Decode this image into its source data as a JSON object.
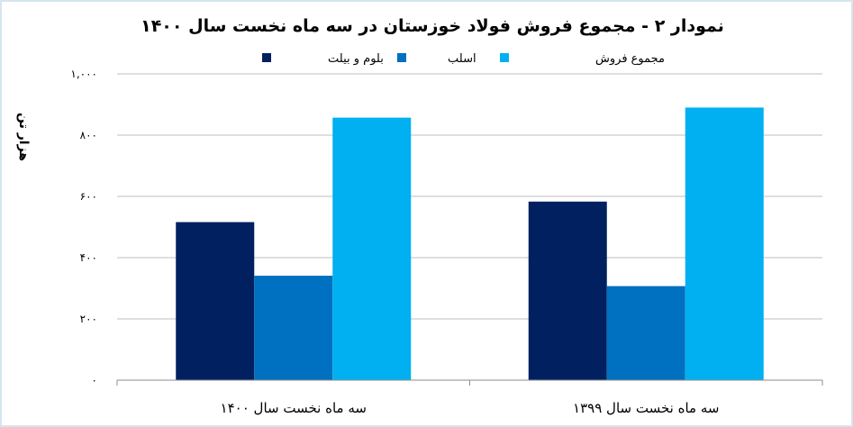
{
  "chart_data": {
    "type": "bar",
    "title": "نمودار ۲ - مجموع فروش فولاد خوزستان در سه ماه نخست سال ۱۴۰۰",
    "ylabel": "هزار تن",
    "xlabel": "",
    "ylim": [
      0,
      1000
    ],
    "yticks": [
      0,
      200,
      400,
      600,
      800,
      1000
    ],
    "ytick_labels": [
      "۰",
      "۲۰۰",
      "۴۰۰",
      "۶۰۰",
      "۸۰۰",
      "۱,۰۰۰"
    ],
    "categories": [
      "سه ماه نخست سال ۱۴۰۰",
      "سه ماه نخست سال ۱۳۹۹"
    ],
    "series": [
      {
        "name": "بلوم و بیلت",
        "color": "#002060",
        "values": [
          516,
          583
        ]
      },
      {
        "name": "اسلب",
        "color": "#0070c0",
        "values": [
          341,
          307
        ]
      },
      {
        "name": "مجموع فروش",
        "color": "#00b0f0",
        "values": [
          857,
          890
        ]
      }
    ],
    "grid": true,
    "legend_position": "top"
  }
}
